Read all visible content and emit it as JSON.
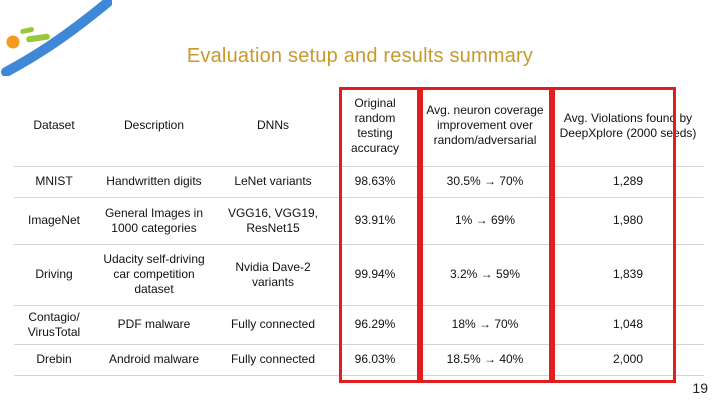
{
  "title": "Evaluation setup and results summary",
  "colors": {
    "title": "#c79a2a",
    "highlight_border": "#e11d1d",
    "logo_blue": "#3f88d8",
    "logo_green": "#99c93a",
    "logo_orange": "#f39a1f"
  },
  "table": {
    "headers": [
      "Dataset",
      "Description",
      "DNNs",
      "Original random testing accuracy",
      "Avg. neuron coverage improvement over random/adversarial",
      "Avg. Violations found by DeepXplore (2000 seeds)"
    ],
    "rows": [
      [
        "MNIST",
        "Handwritten digits",
        "LeNet variants",
        "98.63%",
        "30.5% → 70%",
        "1,289"
      ],
      [
        "ImageNet",
        "General Images in 1000 categories",
        "VGG16, VGG19, ResNet15",
        "93.91%",
        "1% → 69%",
        "1,980"
      ],
      [
        "Driving",
        "Udacity self-driving car competition dataset",
        "Nvidia Dave-2 variants",
        "99.94%",
        "3.2% → 59%",
        "1,839"
      ],
      [
        "Contagio/ VirusTotal",
        "PDF malware",
        "Fully connected",
        "96.29%",
        "18% → 70%",
        "1,048"
      ],
      [
        "Drebin",
        "Android malware",
        "Fully connected",
        "96.03%",
        "18.5% → 40%",
        "2,000"
      ]
    ]
  },
  "page_number": "19"
}
